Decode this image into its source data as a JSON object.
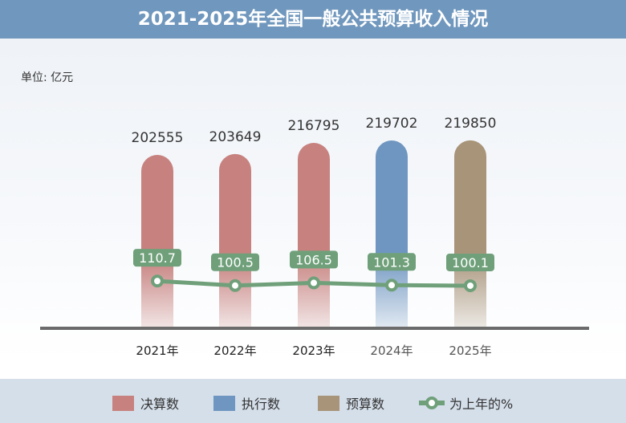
{
  "title": "2021-2025年全国一般公共预算收入情况",
  "unit": "单位: 亿元",
  "chart_data": {
    "type": "bar",
    "categories": [
      "2021年",
      "2022年",
      "2023年",
      "2024年",
      "2025年"
    ],
    "series": [
      {
        "name": "决算数",
        "type": "bar",
        "values": [
          202555,
          203649,
          216795,
          null,
          null
        ],
        "color": "#c7827f"
      },
      {
        "name": "执行数",
        "type": "bar",
        "values": [
          null,
          null,
          null,
          219702,
          null
        ],
        "color": "#6f96c0"
      },
      {
        "name": "预算数",
        "type": "bar",
        "values": [
          null,
          null,
          null,
          null,
          219850
        ],
        "color": "#a89479"
      },
      {
        "name": "为上年的%",
        "type": "line",
        "values": [
          110.7,
          100.5,
          106.5,
          101.3,
          100.1
        ],
        "color": "#6fa07a"
      }
    ],
    "bar_values": [
      202555,
      203649,
      216795,
      219702,
      219850
    ],
    "bar_types": [
      "决算数",
      "决算数",
      "决算数",
      "执行数",
      "预算数"
    ],
    "legend_placement": "bottom",
    "grid": false
  }
}
